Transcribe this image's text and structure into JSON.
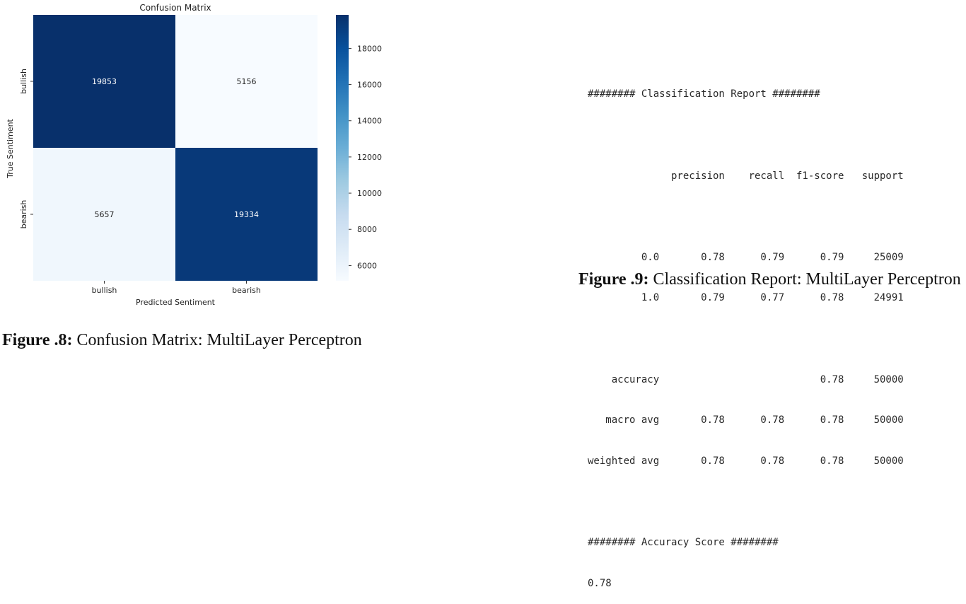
{
  "figure8": {
    "label": "Figure .8:",
    "caption": "Confusion Matrix: MultiLayer Perceptron"
  },
  "figure9": {
    "label": "Figure .9:",
    "caption": "Classification Report: MultiLayer Perceptron"
  },
  "chart_data": {
    "type": "heatmap",
    "title": "Confusion Matrix",
    "xlabel": "Predicted Sentiment",
    "ylabel": "True Sentiment",
    "x_categories": [
      "bullish",
      "bearish"
    ],
    "y_categories": [
      "bullish",
      "bearish"
    ],
    "values": [
      [
        19853,
        5156
      ],
      [
        5657,
        19334
      ]
    ],
    "colormap": "Blues",
    "colorbar_range": [
      5156,
      19853
    ],
    "colorbar_ticks": [
      6000,
      8000,
      10000,
      12000,
      14000,
      16000,
      18000
    ]
  },
  "report": {
    "header_line": "######## Classification Report ########",
    "columns_line": "              precision    recall  f1-score   support",
    "rows": [
      "         0.0       0.78      0.79      0.79     25009",
      "         1.0       0.79      0.77      0.78     24991",
      "",
      "    accuracy                           0.78     50000",
      "   macro avg       0.78      0.78      0.78     50000",
      "weighted avg       0.78      0.78      0.78     50000"
    ],
    "accuracy_header": "######## Accuracy Score ########",
    "accuracy_value": "0.78"
  }
}
